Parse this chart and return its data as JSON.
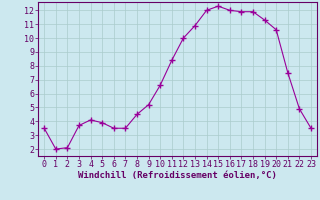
{
  "x": [
    0,
    1,
    2,
    3,
    4,
    5,
    6,
    7,
    8,
    9,
    10,
    11,
    12,
    13,
    14,
    15,
    16,
    17,
    18,
    19,
    20,
    21,
    22,
    23
  ],
  "y": [
    3.5,
    2.0,
    2.1,
    3.7,
    4.1,
    3.9,
    3.5,
    3.5,
    4.5,
    5.2,
    6.6,
    8.4,
    10.0,
    10.9,
    12.0,
    12.3,
    12.0,
    11.9,
    11.9,
    11.3,
    10.6,
    7.5,
    4.9,
    3.5
  ],
  "line_color": "#990099",
  "marker": "+",
  "marker_size": 4,
  "marker_lw": 1.0,
  "bg_color": "#cce8ef",
  "grid_color": "#aacccc",
  "xlabel": "Windchill (Refroidissement éolien,°C)",
  "xlim_min": -0.5,
  "xlim_max": 23.5,
  "ylim_min": 1.5,
  "ylim_max": 12.6,
  "yticks": [
    2,
    3,
    4,
    5,
    6,
    7,
    8,
    9,
    10,
    11,
    12
  ],
  "xticks": [
    0,
    1,
    2,
    3,
    4,
    5,
    6,
    7,
    8,
    9,
    10,
    11,
    12,
    13,
    14,
    15,
    16,
    17,
    18,
    19,
    20,
    21,
    22,
    23
  ],
  "axis_color": "#660066",
  "xlabel_fontsize": 6.5,
  "tick_fontsize": 6.0,
  "line_width": 0.8
}
